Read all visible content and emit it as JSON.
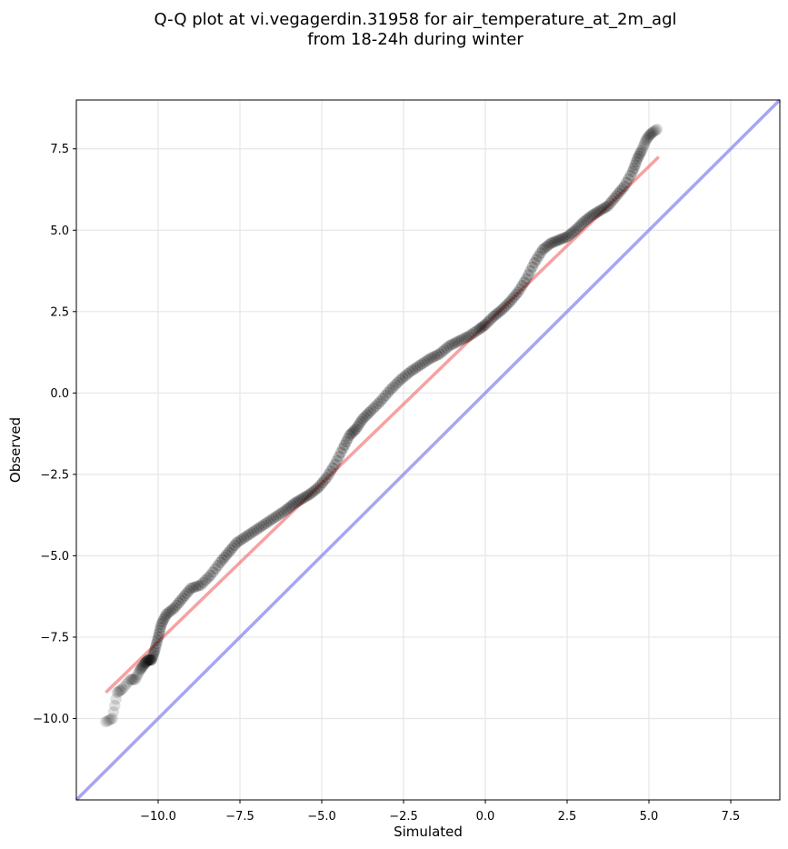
{
  "chart_data": {
    "type": "scatter",
    "title_lines": [
      "Q-Q plot at vi.vegagerdin.31958 for air_temperature_at_2m_agl",
      "from 18-24h during winter"
    ],
    "xlabel": "Simulated",
    "ylabel": "Observed",
    "xlim": [
      -12.5,
      9.0
    ],
    "ylim": [
      -12.5,
      9.0
    ],
    "xticks": [
      -10.0,
      -7.5,
      -5.0,
      -2.5,
      0.0,
      2.5,
      5.0,
      7.5
    ],
    "yticks": [
      -10.0,
      -7.5,
      -5.0,
      -2.5,
      0.0,
      2.5,
      5.0,
      7.5
    ],
    "xtick_labels": [
      "−10.0",
      "−7.5",
      "−5.0",
      "−2.5",
      "0.0",
      "2.5",
      "5.0",
      "7.5"
    ],
    "ytick_labels": [
      "−10.0",
      "−7.5",
      "−5.0",
      "−2.5",
      "0.0",
      "2.5",
      "5.0",
      "7.5"
    ],
    "grid": true,
    "colors": {
      "points": "#000000",
      "fit_line": "#ee5555",
      "identity_line": "#8888ee",
      "grid": "#e6e6e6"
    },
    "series": [
      {
        "kind": "quantiles",
        "x": [
          -11.6,
          -11.4,
          -11.25,
          -11.1,
          -10.85,
          -10.7,
          -10.55,
          -10.4,
          -10.3,
          -10.2,
          -10.1,
          -10.0,
          -9.9,
          -9.75,
          -9.5,
          -9.25,
          -9.0,
          -8.7,
          -8.4,
          -8.1,
          -7.85,
          -7.6,
          -7.3,
          -7.0,
          -6.7,
          -6.4,
          -6.1,
          -5.85,
          -5.6,
          -5.35,
          -5.1,
          -4.85,
          -4.6,
          -4.35,
          -4.15,
          -3.95,
          -3.75,
          -3.5,
          -3.2,
          -2.9,
          -2.6,
          -2.3,
          -2.0,
          -1.7,
          -1.4,
          -1.1,
          -0.8,
          -0.5,
          -0.2,
          0.0,
          0.25,
          0.5,
          0.75,
          1.0,
          1.25,
          1.5,
          1.75,
          2.0,
          2.25,
          2.5,
          2.75,
          3.0,
          3.25,
          3.5,
          3.75,
          4.0,
          4.25,
          4.5,
          4.65,
          4.8,
          4.9,
          5.0,
          5.1,
          5.25
        ],
        "y": [
          -10.1,
          -10.0,
          -9.2,
          -9.1,
          -8.8,
          -8.8,
          -8.5,
          -8.3,
          -8.2,
          -8.2,
          -7.9,
          -7.5,
          -7.1,
          -6.8,
          -6.6,
          -6.3,
          -6.0,
          -5.9,
          -5.6,
          -5.2,
          -4.9,
          -4.6,
          -4.4,
          -4.2,
          -4.0,
          -3.8,
          -3.6,
          -3.4,
          -3.25,
          -3.1,
          -2.9,
          -2.6,
          -2.2,
          -1.7,
          -1.3,
          -1.1,
          -0.8,
          -0.55,
          -0.25,
          0.1,
          0.4,
          0.65,
          0.85,
          1.05,
          1.2,
          1.45,
          1.6,
          1.75,
          1.95,
          2.1,
          2.35,
          2.55,
          2.8,
          3.1,
          3.5,
          4.0,
          4.4,
          4.6,
          4.7,
          4.8,
          5.0,
          5.25,
          5.45,
          5.6,
          5.75,
          6.05,
          6.35,
          6.8,
          7.2,
          7.5,
          7.75,
          7.9,
          8.0,
          8.1
        ]
      },
      {
        "kind": "fit",
        "x": [
          -11.6,
          5.3
        ],
        "y": [
          -9.2,
          7.25
        ]
      },
      {
        "kind": "identity",
        "x": [
          -12.5,
          9.0
        ],
        "y": [
          -12.5,
          9.0
        ]
      }
    ]
  }
}
